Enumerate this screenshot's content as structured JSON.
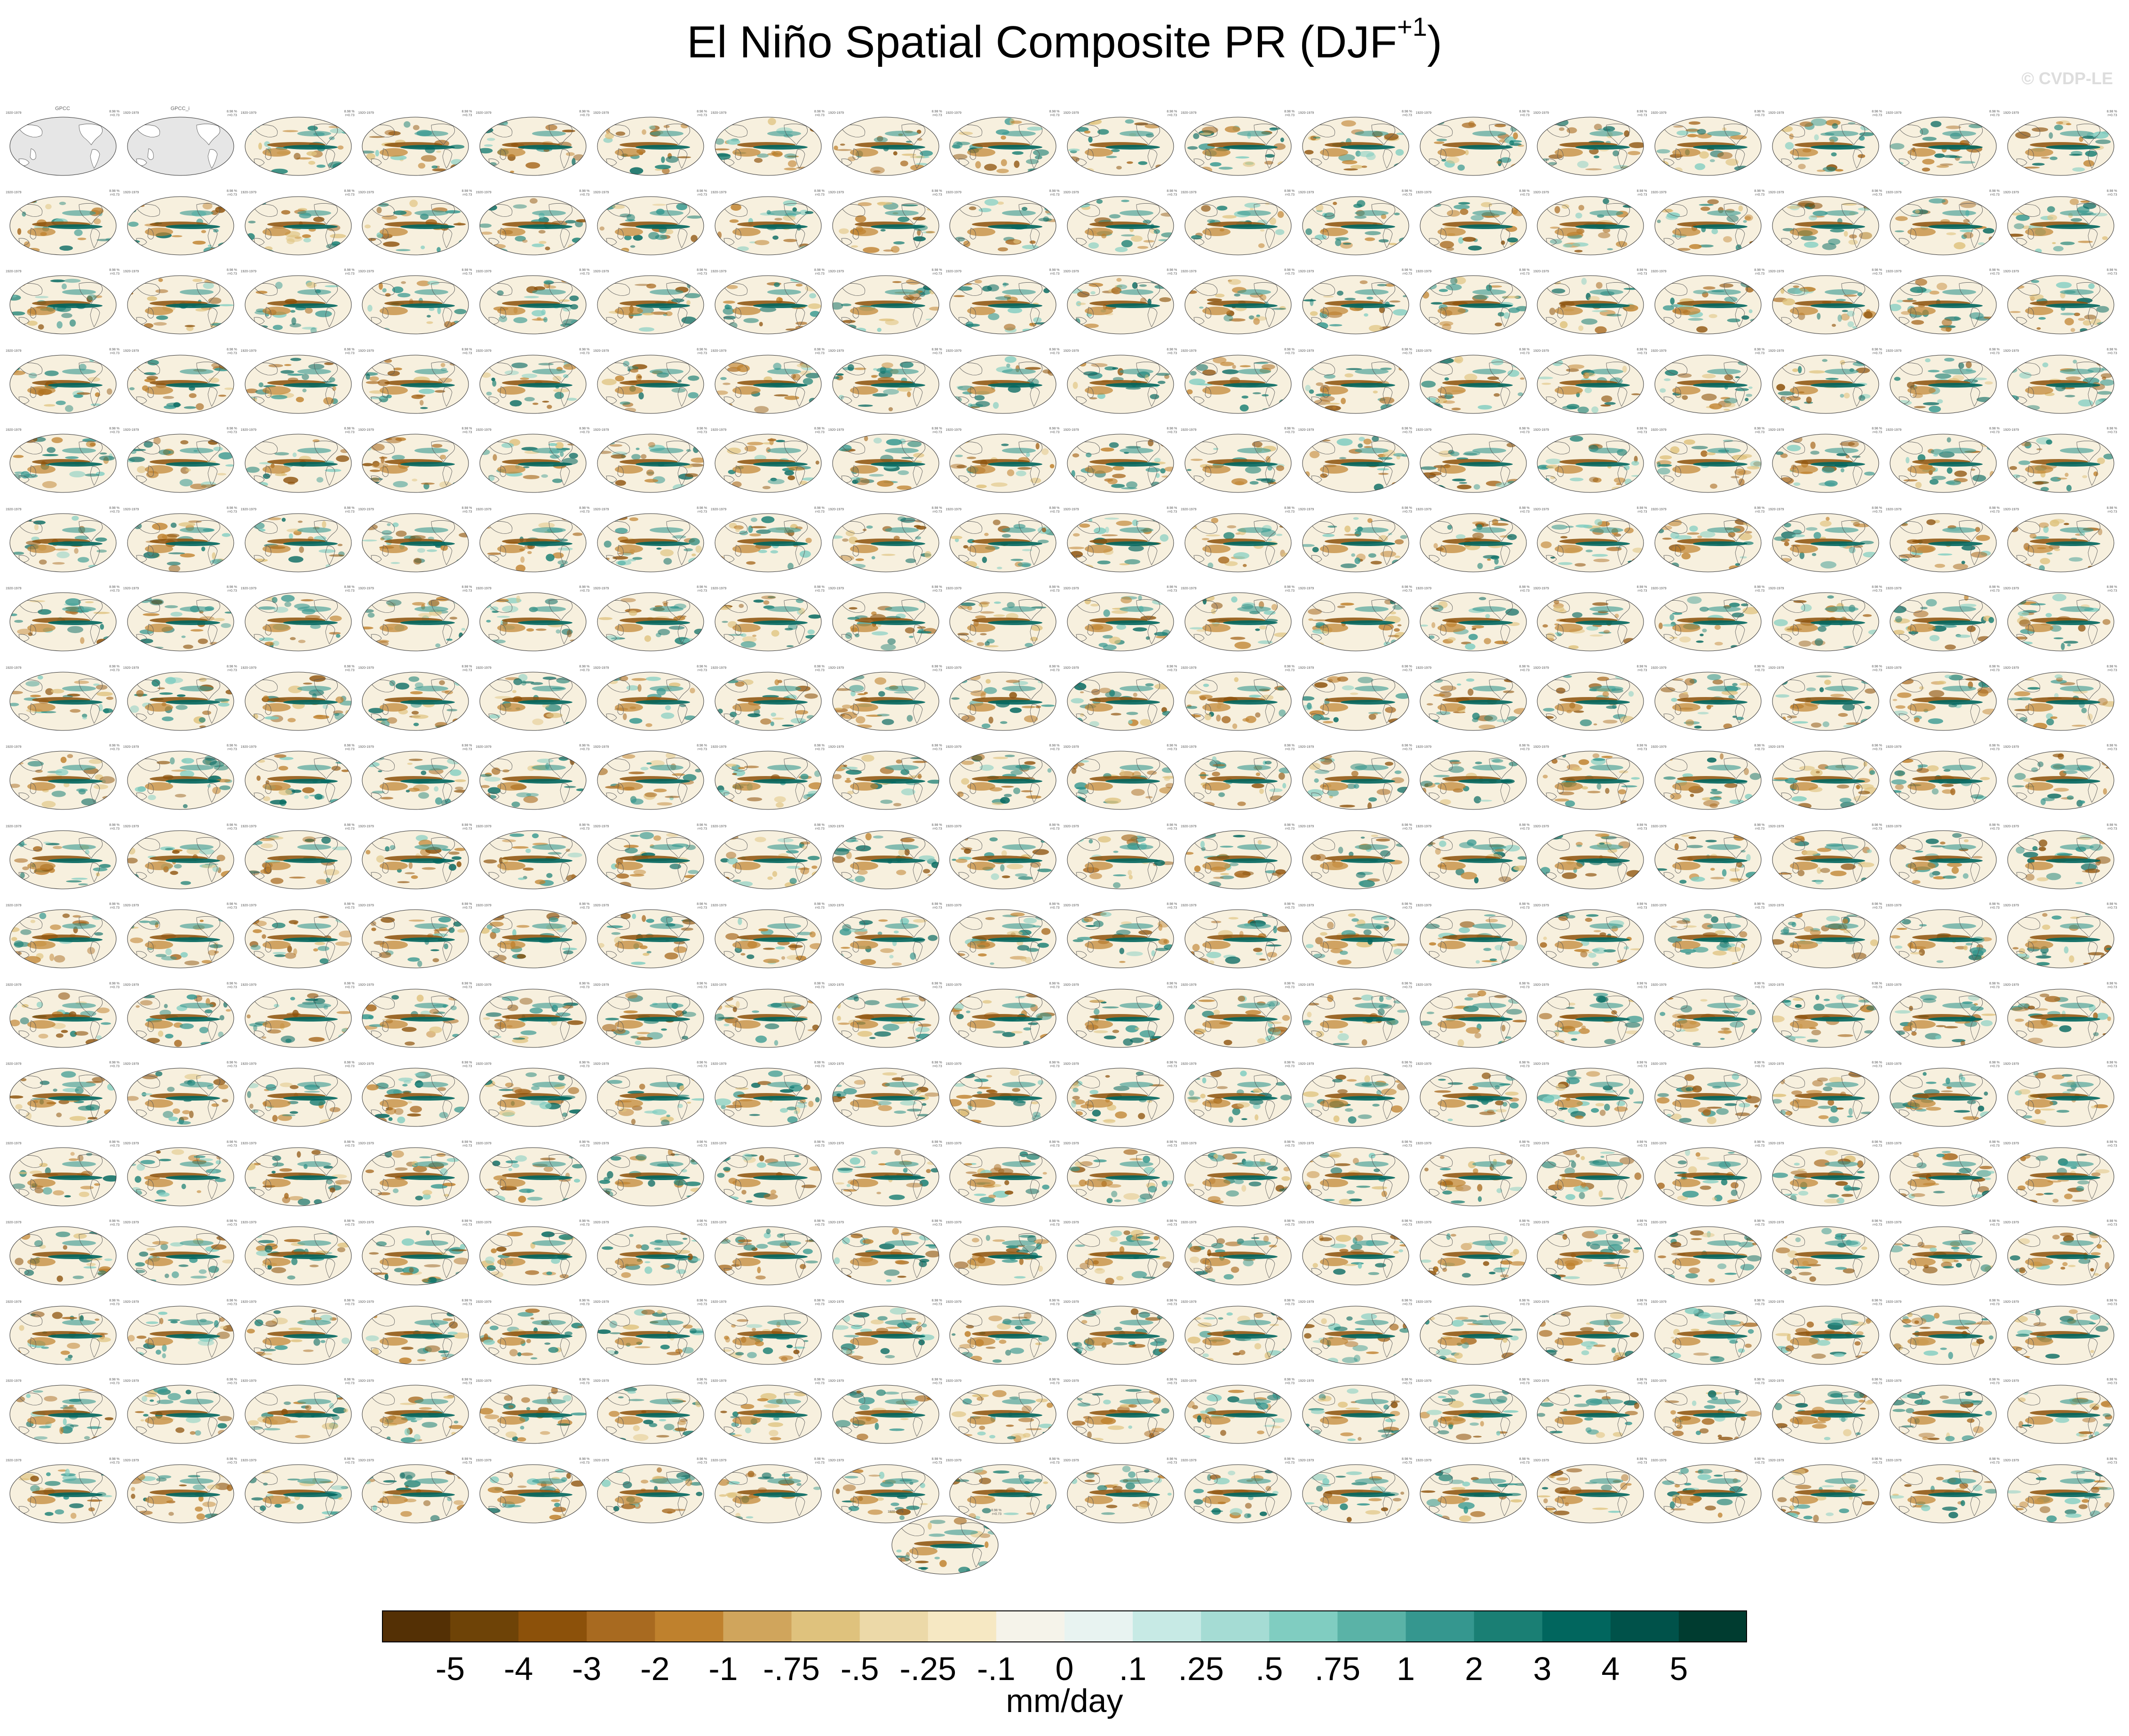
{
  "figure": {
    "title_main": "El Niño Spatial Composite PR (DJF",
    "title_sup": "+1",
    "title_end": ")",
    "watermark": "© CVDP-LE"
  },
  "colors": {
    "ocean_obs": "#e6e6e6",
    "coast": "#555555",
    "title_default": "#8aa4c0",
    "title_obs": "#666666"
  },
  "panels": {
    "columns": 18,
    "rows": 18,
    "count": 324,
    "observation_titles": [
      "GPCC",
      "GPCC_i"
    ],
    "left_label": "1920-1979",
    "right_label": "8.98 %\nr=0.73"
  },
  "extra_panel": {
    "left_label": "1920-1979",
    "right_label": "8.98 %\nr=0.73"
  },
  "colorbar": {
    "units": "mm/day",
    "tick_labels": [
      "-5",
      "-4",
      "-3",
      "-2",
      "-1",
      "-.75",
      "-.5",
      "-.25",
      "-.1",
      "0",
      ".1",
      ".25",
      ".5",
      ".75",
      "1",
      "2",
      "3",
      "4",
      "5"
    ],
    "colors": [
      "#543005",
      "#6e4307",
      "#8c510a",
      "#a86a20",
      "#bf812d",
      "#d0a55c",
      "#dfc27d",
      "#ecd9a8",
      "#f6e8c3",
      "#f5f3ea",
      "#e8f3f1",
      "#c7eae5",
      "#a5dcd4",
      "#80cdc1",
      "#5ab3a7",
      "#35978f",
      "#1a7f74",
      "#01665e",
      "#00524a",
      "#003c30"
    ]
  }
}
